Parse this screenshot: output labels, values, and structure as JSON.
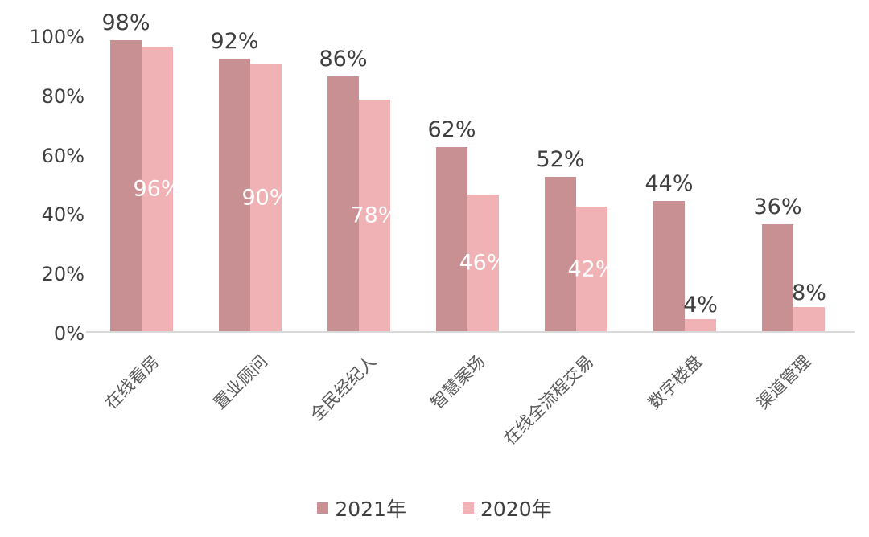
{
  "chart_data": {
    "type": "bar",
    "title": "",
    "xlabel": "",
    "ylabel": "",
    "categories": [
      "在线看房",
      "置业顾问",
      "全民经纪人",
      "智慧案场",
      "在线全流程交易",
      "数字楼盘",
      "渠道管理"
    ],
    "series": [
      {
        "name": "2021年",
        "values": [
          98,
          92,
          86,
          62,
          52,
          44,
          36
        ],
        "color": "#c99093",
        "label_style": "outside-top-dark"
      },
      {
        "name": "2020年",
        "values": [
          96,
          90,
          78,
          46,
          42,
          4,
          8
        ],
        "color": "#f1b2b5",
        "label_style": "inside-center-white-or-outside-if-small"
      }
    ],
    "value_suffix": "%",
    "ylim": [
      0,
      100
    ],
    "yticks": [
      0,
      20,
      40,
      60,
      80,
      100
    ],
    "ytick_labels": [
      "0%",
      "20%",
      "40%",
      "60%",
      "80%",
      "100%"
    ],
    "grid": false,
    "legend_position": "bottom",
    "colors": {
      "bar_2021": "#c99093",
      "bar_2020": "#f1b2b5",
      "axis_text": "#404040",
      "data_label_dark": "#3f3f3f",
      "data_label_light": "#ffffff",
      "category_text": "#595959",
      "baseline": "#d9d9d9",
      "background": "#ffffff"
    }
  }
}
